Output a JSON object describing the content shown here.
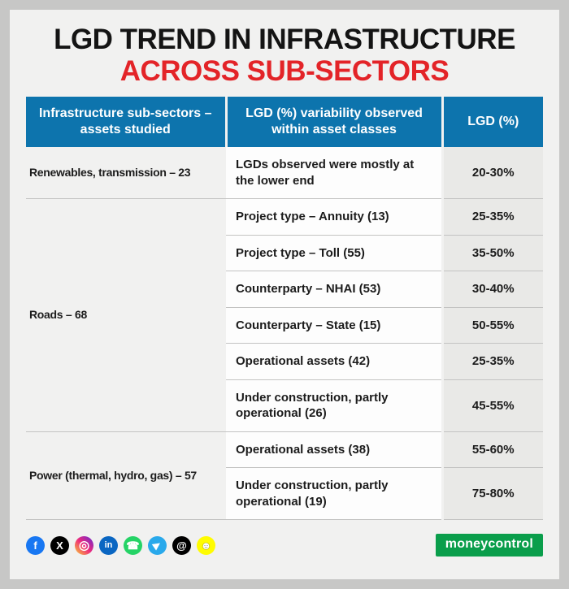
{
  "page": {
    "title_line1": "LGD TREND IN INFRASTRUCTURE",
    "title_line2": "ACROSS SUB-SECTORS"
  },
  "chart_data": {
    "type": "table",
    "title": "LGD TREND IN INFRASTRUCTURE ACROSS SUB-SECTORS",
    "columns": [
      "Infrastructure sub-sectors – assets studied",
      "LGD (%) variability observed within asset classes",
      "LGD (%)"
    ],
    "groups": [
      {
        "sector": "Renewables, transmission – 23",
        "rows": [
          {
            "label": "LGDs observed were mostly at the lower end",
            "lgd": "20-30%"
          }
        ]
      },
      {
        "sector": "Roads – 68",
        "rows": [
          {
            "label": "Project type – Annuity (13)",
            "lgd": "25-35%"
          },
          {
            "label": "Project type – Toll (55)",
            "lgd": "35-50%"
          },
          {
            "label": "Counterparty – NHAI (53)",
            "lgd": "30-40%"
          },
          {
            "label": "Counterparty – State (15)",
            "lgd": "50-55%"
          },
          {
            "label": "Operational assets (42)",
            "lgd": "25-35%"
          },
          {
            "label": "Under construction, partly operational (26)",
            "lgd": "45-55%"
          }
        ]
      },
      {
        "sector": "Power (thermal, hydro, gas) – 57",
        "rows": [
          {
            "label": "Operational assets (38)",
            "lgd": "55-60%"
          },
          {
            "label": "Under construction, partly operational (19)",
            "lgd": "75-80%"
          }
        ]
      }
    ]
  },
  "footer": {
    "brand": "moneycontrol",
    "social": [
      {
        "name": "facebook",
        "glyph": "f",
        "bg": "#1877f2"
      },
      {
        "name": "x",
        "glyph": "X",
        "bg": "#000000"
      },
      {
        "name": "instagram",
        "glyph": "◎",
        "bg": "linear-gradient(45deg,#f9ce34,#ee2a7b,#6228d7)",
        "size": "15px"
      },
      {
        "name": "linkedin",
        "glyph": "in",
        "bg": "#0a66c2",
        "size": "11px"
      },
      {
        "name": "whatsapp",
        "glyph": "☎",
        "bg": "#25d366"
      },
      {
        "name": "telegram",
        "glyph": "▶",
        "bg": "#29a9eb",
        "size": "11px",
        "rotate": "-35deg"
      },
      {
        "name": "threads",
        "glyph": "@",
        "bg": "#000000"
      },
      {
        "name": "snapchat",
        "glyph": "☻",
        "bg": "#fffc00",
        "fg": "#ffffff",
        "shadow": "0 0 1px #000"
      }
    ]
  },
  "colors": {
    "header_blue": "#0d74ad",
    "title_red": "#e32428",
    "brand_green": "#0a9e4b"
  }
}
